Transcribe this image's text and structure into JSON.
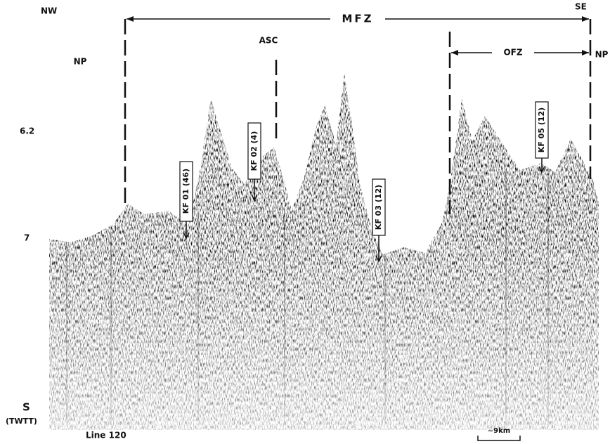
{
  "header": {
    "left": "NW",
    "right": "SE"
  },
  "zones": {
    "mfz": "MFZ",
    "ofz": "OFZ",
    "asc": "ASC",
    "np_left": "NP",
    "np_right": "NP"
  },
  "axis": {
    "ticks": [
      "6.2",
      "7"
    ],
    "unit_symbol": "S",
    "unit": "(TWTT)"
  },
  "line_label": "Line 120",
  "scale_bar": "~9km",
  "samples": [
    {
      "label": "KF 01 (46)"
    },
    {
      "label": "KF 02 (4)"
    },
    {
      "label": "KF 03 (12)"
    },
    {
      "label": "KF 05 (12)"
    }
  ]
}
